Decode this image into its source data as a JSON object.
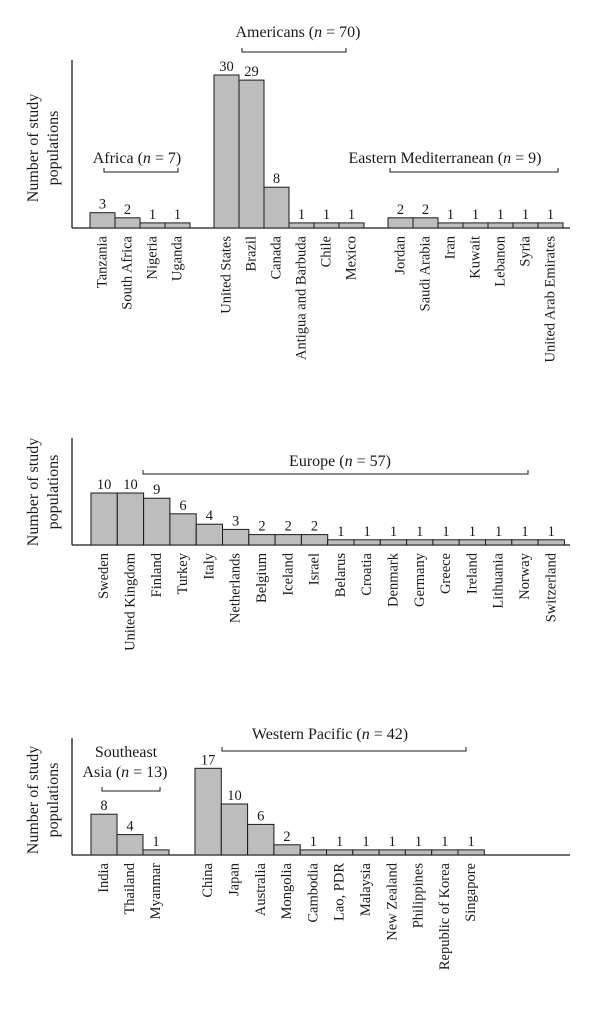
{
  "chart_data": [
    {
      "type": "bar",
      "ylabel": "Number of study populations",
      "groups": [
        {
          "label_pre": "Africa (",
          "label_n": "n",
          "label_post": " = 7)",
          "categories": [
            "Tanzania",
            "South Africa",
            "Nigeria",
            "Uganda"
          ],
          "values": [
            3,
            2,
            1,
            1
          ]
        },
        {
          "label_pre": "Americans (",
          "label_n": "n",
          "label_post": " = 70)",
          "categories": [
            "United States",
            "Brazil",
            "Canada",
            "Antigua and Barbuda",
            "Chile",
            "Mexico"
          ],
          "values": [
            30,
            29,
            8,
            1,
            1,
            1
          ]
        },
        {
          "label_pre": "Eastern Mediterranean (",
          "label_n": "n",
          "label_post": " = 9)",
          "categories": [
            "Jordan",
            "Saudi Arabia",
            "Iran",
            "Kuwait",
            "Lebanon",
            "Syria",
            "United Arab Emirates"
          ],
          "values": [
            2,
            2,
            1,
            1,
            1,
            1,
            1
          ]
        }
      ]
    },
    {
      "type": "bar",
      "ylabel": "Number of study populations",
      "groups": [
        {
          "label_pre": "Europe (",
          "label_n": "n",
          "label_post": " = 57)",
          "categories": [
            "Sweden",
            "United Kingdom",
            "Finland",
            "Turkey",
            "Italy",
            "Netherlands",
            "Belgium",
            "Iceland",
            "Israel",
            "Belarus",
            "Croatia",
            "Denmark",
            "Germany",
            "Greece",
            "Ireland",
            "Lithuania",
            "Norway",
            "Switzerland"
          ],
          "values": [
            10,
            10,
            9,
            6,
            4,
            3,
            2,
            2,
            2,
            1,
            1,
            1,
            1,
            1,
            1,
            1,
            1,
            1
          ]
        }
      ]
    },
    {
      "type": "bar",
      "ylabel": "Number of study populations",
      "groups": [
        {
          "label_pre": "Southeast Asia (",
          "label_n": "n",
          "label_post": " = 13)",
          "categories": [
            "India",
            "Thailand",
            "Myanmar"
          ],
          "values": [
            8,
            4,
            1
          ]
        },
        {
          "label_pre": "Western Pacific (",
          "label_n": "n",
          "label_post": " = 42)",
          "categories": [
            "China",
            "Japan",
            "Australia",
            "Mongolia",
            "Cambodia",
            "Lao, PDR",
            "Malaysia",
            "New Zealand",
            "Philippines",
            "Republic of Korea",
            "Singapore"
          ],
          "values": [
            17,
            10,
            6,
            2,
            1,
            1,
            1,
            1,
            1,
            1,
            1
          ]
        }
      ]
    }
  ]
}
